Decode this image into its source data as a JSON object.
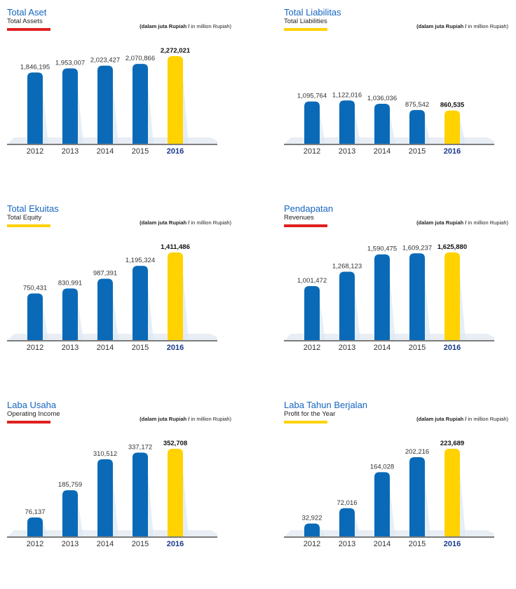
{
  "unit_note": {
    "prefix": "(dalam juta Rupiah /",
    "suffix": " in million Rupiah)"
  },
  "colors": {
    "bar": "#0a6ab8",
    "highlight": "#ffd200",
    "red_accent": "#e02020",
    "yellow_accent": "#ffd200",
    "title": "#1565c0"
  },
  "chart_data": [
    {
      "type": "bar",
      "title": "Total Aset",
      "subtitle": "Total  Assets",
      "accent": "red",
      "categories": [
        "2012",
        "2013",
        "2014",
        "2015",
        "2016"
      ],
      "values": [
        1846195,
        1953007,
        2023427,
        2070866,
        2272021
      ],
      "value_labels": [
        "1,846,195",
        "1,953,007",
        "2,023,427",
        "2,070,866",
        "2,272,021"
      ],
      "highlight_index": 4,
      "ylim": [
        0,
        2272021
      ]
    },
    {
      "type": "bar",
      "title": "Total Liabilitas",
      "subtitle": "Total Liabilities",
      "accent": "yellow",
      "categories": [
        "2012",
        "2013",
        "2014",
        "2015",
        "2016"
      ],
      "values": [
        1095764,
        1122016,
        1036036,
        875542,
        860535
      ],
      "value_labels": [
        "1,095,764",
        "1,122,016",
        "1,036,036",
        "875,542",
        "860,535"
      ],
      "highlight_index": 4,
      "ylim": [
        0,
        2272021
      ]
    },
    {
      "type": "bar",
      "title": "Total Ekuitas",
      "subtitle": "Total  Equity",
      "accent": "yellow",
      "categories": [
        "2012",
        "2013",
        "2014",
        "2015",
        "2016"
      ],
      "values": [
        750431,
        830991,
        987391,
        1195324,
        1411486
      ],
      "value_labels": [
        "750,431",
        "830,991",
        "987,391",
        "1,195,324",
        "1,411,486"
      ],
      "highlight_index": 4,
      "ylim": [
        0,
        1411486
      ]
    },
    {
      "type": "bar",
      "title": "Pendapatan",
      "subtitle": "Revenues",
      "accent": "red",
      "categories": [
        "2012",
        "2013",
        "2014",
        "2015",
        "2016"
      ],
      "values": [
        1001472,
        1268123,
        1590475,
        1609237,
        1625880
      ],
      "value_labels": [
        "1,001,472",
        "1,268,123",
        "1,590,475",
        "1,609,237",
        "1,625,880"
      ],
      "highlight_index": 4,
      "ylim": [
        0,
        1625880
      ]
    },
    {
      "type": "bar",
      "title": "Laba Usaha",
      "subtitle": "Operating Income",
      "accent": "red",
      "categories": [
        "2012",
        "2013",
        "2014",
        "2015",
        "2016"
      ],
      "values": [
        76137,
        185759,
        310512,
        337172,
        352708
      ],
      "value_labels": [
        "76,137",
        "185,759",
        "310,512",
        "337,172",
        "352,708"
      ],
      "highlight_index": 4,
      "ylim": [
        0,
        352708
      ]
    },
    {
      "type": "bar",
      "title": "Laba Tahun Berjalan",
      "subtitle": "Profit for the Year",
      "accent": "yellow",
      "categories": [
        "2012",
        "2013",
        "2014",
        "2015",
        "2016"
      ],
      "values": [
        32922,
        72016,
        164028,
        202216,
        223689
      ],
      "value_labels": [
        "32,922",
        "72,016",
        "164,028",
        "202,216",
        "223,689"
      ],
      "highlight_index": 4,
      "ylim": [
        0,
        223689
      ]
    }
  ]
}
